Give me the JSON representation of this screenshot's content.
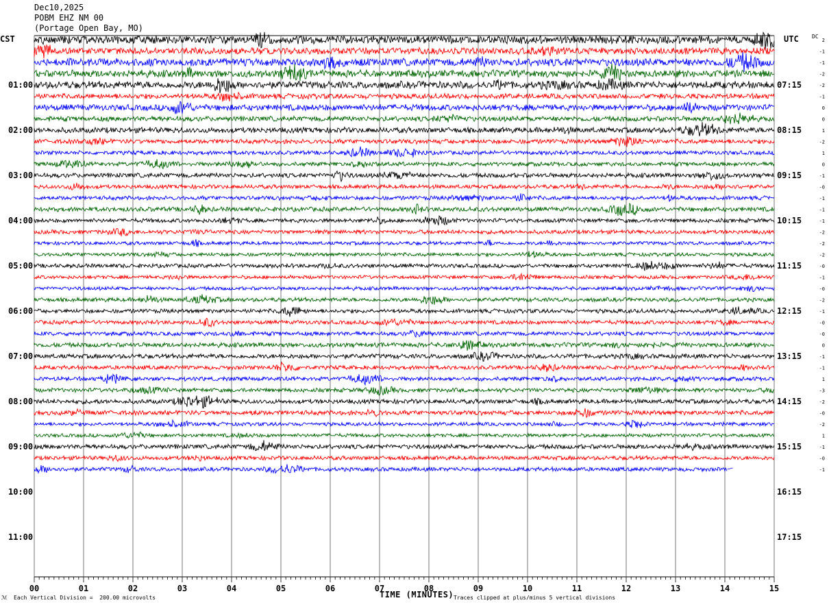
{
  "header": {
    "date": "Dec10,2025",
    "station": "POBM EHZ NM 00",
    "location": "(Portage Open Bay, MO)"
  },
  "corners": {
    "left_tz": "CST",
    "right_tz": "UTC",
    "dc_label": "DC"
  },
  "footer": {
    "division_note": "Each Vertical Division =  200.00 microvolts",
    "axis_title": "TIME (MINUTES)",
    "clip_note": "Traces clipped at plus/minus 5 vertical divisions",
    "logo": "ℳ"
  },
  "chart_data": {
    "type": "line",
    "title": "POBM EHZ NM 00",
    "xlabel": "TIME (MINUTES)",
    "xlim": [
      0,
      15
    ],
    "x_ticks": [
      "00",
      "01",
      "02",
      "03",
      "04",
      "05",
      "06",
      "07",
      "08",
      "09",
      "10",
      "11",
      "12",
      "13",
      "14",
      "15"
    ],
    "left_hour_labels": [
      "01:00",
      "02:00",
      "03:00",
      "04:00",
      "05:00",
      "06:00",
      "07:00",
      "08:00",
      "09:00",
      "10:00",
      "11:00"
    ],
    "right_hour_labels": [
      "07:15",
      "08:15",
      "09:15",
      "10:15",
      "11:15",
      "12:15",
      "13:15",
      "14:15",
      "15:15",
      "16:15",
      "17:15"
    ],
    "rows_per_hour": 4,
    "trace_colors": [
      "#000000",
      "#ff0000",
      "#0000ff",
      "#006400"
    ],
    "total_rows": 48,
    "traces_drawn": 39,
    "last_trace_end_minute": 14.05,
    "dc_offsets": [
      "2",
      "-1",
      "-1",
      "-2",
      "-2",
      "-1",
      "0",
      "0",
      "1",
      "-2",
      "1",
      "0",
      "-1",
      "-0",
      "-1",
      "-1",
      "-1",
      "-2",
      "-2",
      "-2",
      "-0",
      "-1",
      "-0",
      "-2",
      "-1",
      "-0",
      "-0",
      "0",
      "-1",
      "-1",
      "1",
      "-3",
      "-2",
      "-0",
      "-2",
      "1",
      "-1",
      "-0",
      "-1"
    ],
    "row_amplitude": [
      1.6,
      1.3,
      1.5,
      1.4,
      1.4,
      1.0,
      1.2,
      1.0,
      1.1,
      0.9,
      0.8,
      0.8,
      0.9,
      0.8,
      0.8,
      0.9,
      0.8,
      0.8,
      0.7,
      0.7,
      0.8,
      0.7,
      0.7,
      0.8,
      0.8,
      0.8,
      0.8,
      0.9,
      0.9,
      0.8,
      0.8,
      0.8,
      0.9,
      0.9,
      0.7,
      0.7,
      0.9,
      0.8,
      0.8
    ]
  }
}
